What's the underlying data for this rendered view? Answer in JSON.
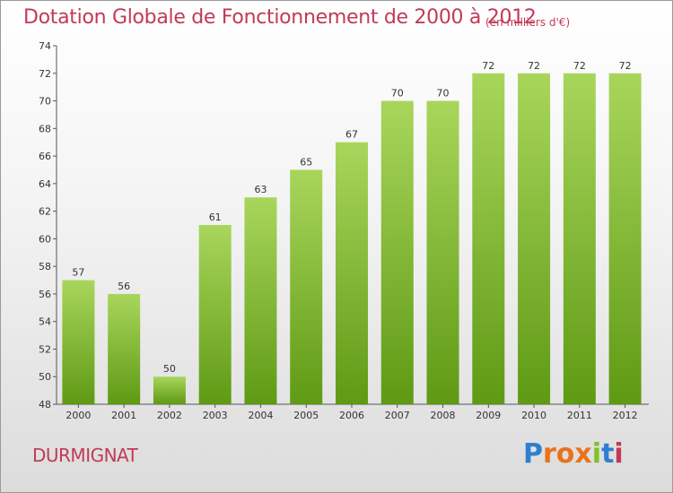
{
  "header": {
    "title": "Dotation Globale de Fonctionnement de 2000 à 2012",
    "units": "(en milliers d'€)"
  },
  "footer": {
    "commune": "DURMIGNAT",
    "brand": "Proxiti"
  },
  "colors": {
    "bar_light": "#a8d65c",
    "bar_dark": "#5f9a14",
    "title": "#c23a57",
    "brand_letters": [
      "#2f7fd1",
      "#e8731c",
      "#e8731c",
      "#e8731c",
      "#7fbf2a",
      "#2f7fd1",
      "#c23a57"
    ]
  },
  "chart_data": {
    "type": "bar",
    "categories": [
      "2000",
      "2001",
      "2002",
      "2003",
      "2004",
      "2005",
      "2006",
      "2007",
      "2008",
      "2009",
      "2010",
      "2011",
      "2012"
    ],
    "values": [
      57,
      56,
      50,
      61,
      63,
      65,
      67,
      70,
      70,
      72,
      72,
      72,
      72
    ],
    "ylim": [
      48,
      74
    ],
    "yticks": [
      48,
      50,
      52,
      54,
      56,
      58,
      60,
      62,
      64,
      66,
      68,
      70,
      72,
      74
    ],
    "grid": false,
    "legend": "none"
  }
}
